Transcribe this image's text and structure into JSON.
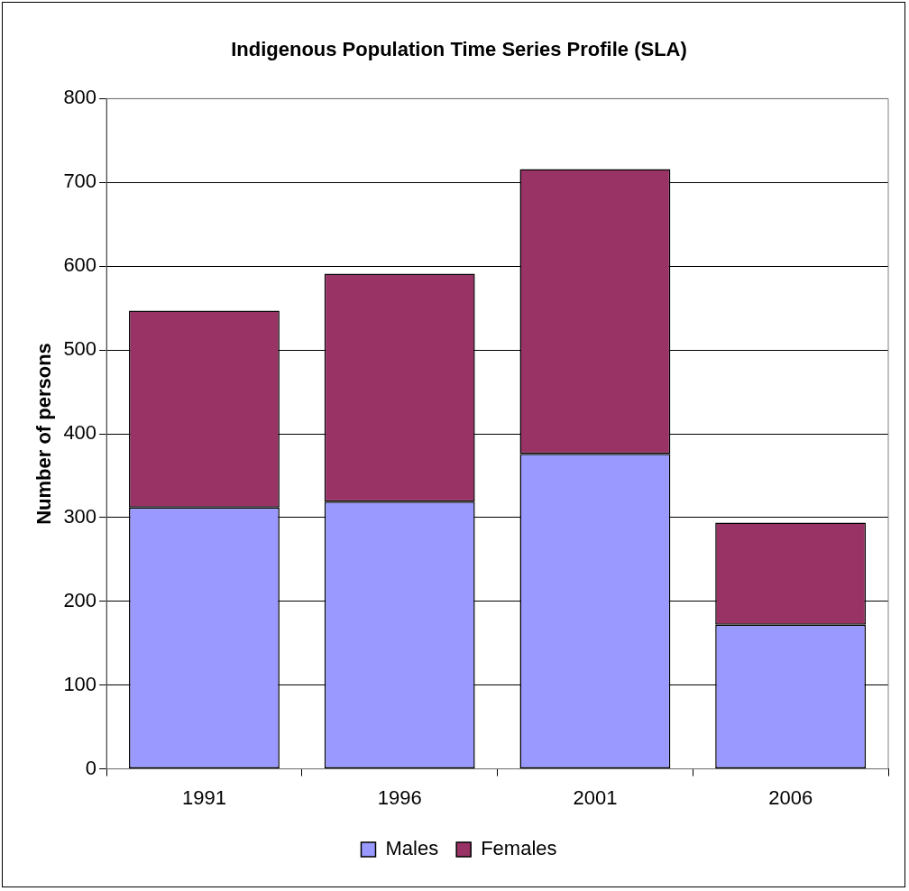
{
  "chart_data": {
    "type": "bar",
    "title": "Indigenous Population Time Series Profile (SLA)",
    "ylabel": "Number of persons",
    "categories": [
      "1991",
      "1996",
      "2001",
      "2006"
    ],
    "stacked": true,
    "series": [
      {
        "name": "Males",
        "color": "#9999ff",
        "values": [
          312,
          319,
          376,
          172
        ]
      },
      {
        "name": "Females",
        "color": "#993366",
        "values": [
          235,
          272,
          340,
          122
        ]
      }
    ],
    "ylim": [
      0,
      800
    ],
    "yticks": [
      0,
      100,
      200,
      300,
      400,
      500,
      600,
      700,
      800
    ],
    "grid": "y",
    "legend": "bottom"
  }
}
